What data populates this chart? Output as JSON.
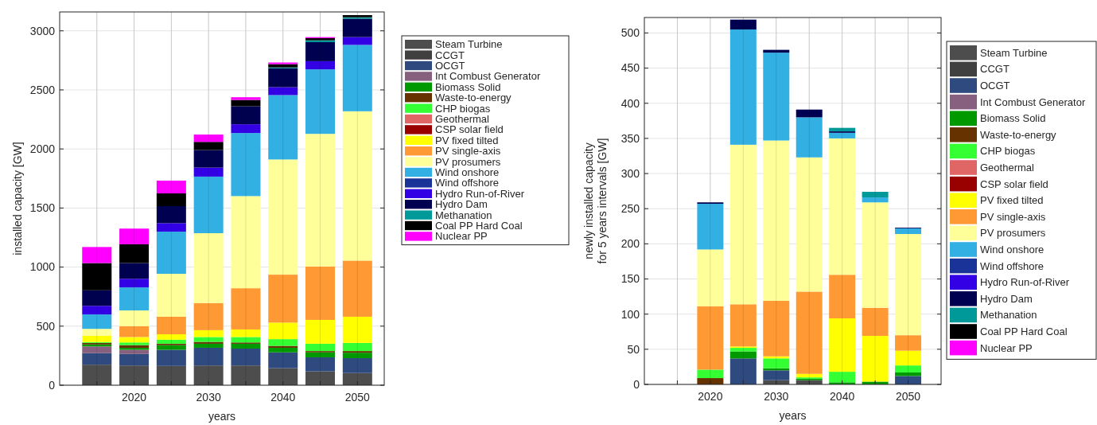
{
  "chart_data": [
    {
      "type": "bar",
      "stacked": true,
      "xlabel": "years",
      "ylabel": "installed capacity [GW]",
      "x": [
        2015,
        2020,
        2025,
        2030,
        2035,
        2040,
        2045,
        2050
      ],
      "xlim": [
        2010,
        2053.6
      ],
      "ylim": [
        0,
        3160
      ],
      "xticks": [
        {
          "value": 2015,
          "label": null
        },
        2020,
        {
          "value": 2025,
          "label": null
        },
        2030,
        {
          "value": 2035,
          "label": null
        },
        2040,
        {
          "value": 2045,
          "label": null
        },
        2050
      ],
      "yticks": [
        0,
        500,
        1000,
        1500,
        2000,
        2500,
        3000
      ],
      "grid": true,
      "legend": "right",
      "series": [
        {
          "name": "Steam Turbine",
          "color": "#4d4d4d",
          "values": [
            174,
            167,
            163,
            167,
            167,
            144,
            117,
            103
          ]
        },
        {
          "name": "CCGT",
          "color": "#404040",
          "values": [
            0,
            0,
            0,
            0,
            0,
            0,
            0,
            0
          ]
        },
        {
          "name": "OCGT",
          "color": "#2f4a7f",
          "values": [
            97,
            97,
            137,
            150,
            143,
            134,
            119,
            126
          ]
        },
        {
          "name": "Int Combust Generator",
          "color": "#86607e",
          "values": [
            57,
            36,
            0,
            0,
            0,
            0,
            0,
            0
          ]
        },
        {
          "name": "Biomass Solid",
          "color": "#009900",
          "values": [
            17,
            16,
            39,
            34,
            41,
            39,
            42,
            46
          ]
        },
        {
          "name": "Waste-to-energy",
          "color": "#663300",
          "values": [
            13,
            23,
            12,
            16,
            11,
            16,
            11,
            14
          ]
        },
        {
          "name": "CHP biogas",
          "color": "#33ff33",
          "values": [
            7,
            23,
            34,
            41,
            46,
            57,
            62,
            69
          ]
        },
        {
          "name": "Geothermal",
          "color": "#e06666",
          "values": [
            0,
            0,
            0,
            0,
            0,
            0,
            0,
            0
          ]
        },
        {
          "name": "CSP solar field",
          "color": "#990000",
          "values": [
            0,
            0,
            0,
            0,
            0,
            0,
            0,
            0
          ]
        },
        {
          "name": "PV fixed tilted",
          "color": "#ffff00",
          "values": [
            55,
            46,
            46,
            58,
            64,
            140,
            202,
            222
          ]
        },
        {
          "name": "PV single-axis",
          "color": "#ff9933",
          "values": [
            0,
            92,
            149,
            229,
            349,
            406,
            452,
            475
          ]
        },
        {
          "name": "PV prosumers",
          "color": "#ffff99",
          "values": [
            57,
            133,
            363,
            592,
            780,
            975,
            1123,
            1264
          ]
        },
        {
          "name": "Wind onshore",
          "color": "#33b0e3",
          "values": [
            122,
            195,
            357,
            479,
            534,
            545,
            546,
            562
          ]
        },
        {
          "name": "Wind offshore",
          "color": "#1a3399",
          "values": [
            0,
            0,
            0,
            0,
            0,
            0,
            0,
            0
          ]
        },
        {
          "name": "Hydro Run-of-River",
          "color": "#3300e6",
          "values": [
            73,
            73,
            72,
            76,
            74,
            67,
            69,
            66
          ]
        },
        {
          "name": "Hydro Dam",
          "color": "#000050",
          "values": [
            131,
            133,
            144,
            149,
            153,
            160,
            161,
            156
          ]
        },
        {
          "name": "Methanation",
          "color": "#009999",
          "values": [
            0,
            0,
            0,
            0,
            0,
            7,
            16,
            12
          ]
        },
        {
          "name": "Coal PP Hard Coal",
          "color": "#000000",
          "values": [
            231,
            159,
            108,
            69,
            53,
            28,
            18,
            18
          ]
        },
        {
          "name": "Nuclear PP",
          "color": "#ff00ff",
          "values": [
            136,
            133,
            108,
            62,
            23,
            14,
            9,
            0
          ]
        }
      ]
    },
    {
      "type": "bar",
      "stacked": true,
      "xlabel": "years",
      "ylabel": "newly installed capacity\nfor 5 years intervals [GW]",
      "x": [
        2020,
        2025,
        2030,
        2035,
        2040,
        2045,
        2050
      ],
      "xlim": [
        2010,
        2055
      ],
      "ylim": [
        0,
        522
      ],
      "xticks": [
        {
          "value": 2015,
          "label": null
        },
        2020,
        {
          "value": 2025,
          "label": null
        },
        2030,
        {
          "value": 2035,
          "label": null
        },
        2040,
        {
          "value": 2045,
          "label": null
        },
        2050
      ],
      "yticks": [
        0,
        50,
        100,
        150,
        200,
        250,
        300,
        350,
        400,
        450,
        500
      ],
      "grid": true,
      "legend": "right",
      "series": [
        {
          "name": "Steam Turbine",
          "color": "#4d4d4d",
          "values": [
            0,
            0,
            6,
            6,
            0,
            0,
            0
          ]
        },
        {
          "name": "CCGT",
          "color": "#404040",
          "values": [
            0,
            0,
            0,
            0,
            0,
            0,
            0
          ]
        },
        {
          "name": "OCGT",
          "color": "#2f4a7f",
          "values": [
            0,
            37,
            14,
            0,
            0,
            0,
            12
          ]
        },
        {
          "name": "Int Combust Generator",
          "color": "#86607e",
          "values": [
            0,
            0,
            0,
            0,
            0,
            0,
            0
          ]
        },
        {
          "name": "Biomass Solid",
          "color": "#009900",
          "values": [
            0,
            10,
            3,
            2,
            3,
            4,
            5
          ]
        },
        {
          "name": "Waste-to-energy",
          "color": "#663300",
          "values": [
            9,
            0,
            0,
            0,
            0,
            0,
            0
          ]
        },
        {
          "name": "CHP biogas",
          "color": "#33ff33",
          "values": [
            12,
            5,
            14,
            2,
            15,
            0,
            10
          ]
        },
        {
          "name": "Geothermal",
          "color": "#e06666",
          "values": [
            0,
            0,
            0,
            0,
            0,
            0,
            0
          ]
        },
        {
          "name": "CSP solar field",
          "color": "#990000",
          "values": [
            0,
            0,
            0,
            0,
            0,
            0,
            0
          ]
        },
        {
          "name": "PV fixed tilted",
          "color": "#ffff00",
          "values": [
            0,
            2,
            3,
            5,
            76,
            65,
            21
          ]
        },
        {
          "name": "PV single-axis",
          "color": "#ff9933",
          "values": [
            90,
            60,
            79,
            117,
            62,
            40,
            22
          ]
        },
        {
          "name": "PV prosumers",
          "color": "#ffff99",
          "values": [
            81,
            227,
            228,
            191,
            194,
            150,
            144
          ]
        },
        {
          "name": "Wind onshore",
          "color": "#33b0e3",
          "values": [
            65,
            164,
            125,
            57,
            8,
            7,
            8
          ]
        },
        {
          "name": "Wind offshore",
          "color": "#1a3399",
          "values": [
            0,
            0,
            0,
            0,
            0,
            0,
            0
          ]
        },
        {
          "name": "Hydro Run-of-River",
          "color": "#3300e6",
          "values": [
            0,
            0,
            0,
            0,
            0,
            0,
            0
          ]
        },
        {
          "name": "Hydro Dam",
          "color": "#000050",
          "values": [
            2,
            14,
            4,
            11,
            2,
            0,
            1
          ]
        },
        {
          "name": "Methanation",
          "color": "#009999",
          "values": [
            0,
            0,
            0,
            0,
            5,
            8,
            0
          ]
        },
        {
          "name": "Coal PP Hard Coal",
          "color": "#000000",
          "values": [
            0,
            0,
            0,
            0,
            0,
            0,
            0
          ]
        },
        {
          "name": "Nuclear PP",
          "color": "#ff00ff",
          "values": [
            0,
            0,
            0,
            0,
            0,
            0,
            0
          ]
        }
      ]
    }
  ]
}
